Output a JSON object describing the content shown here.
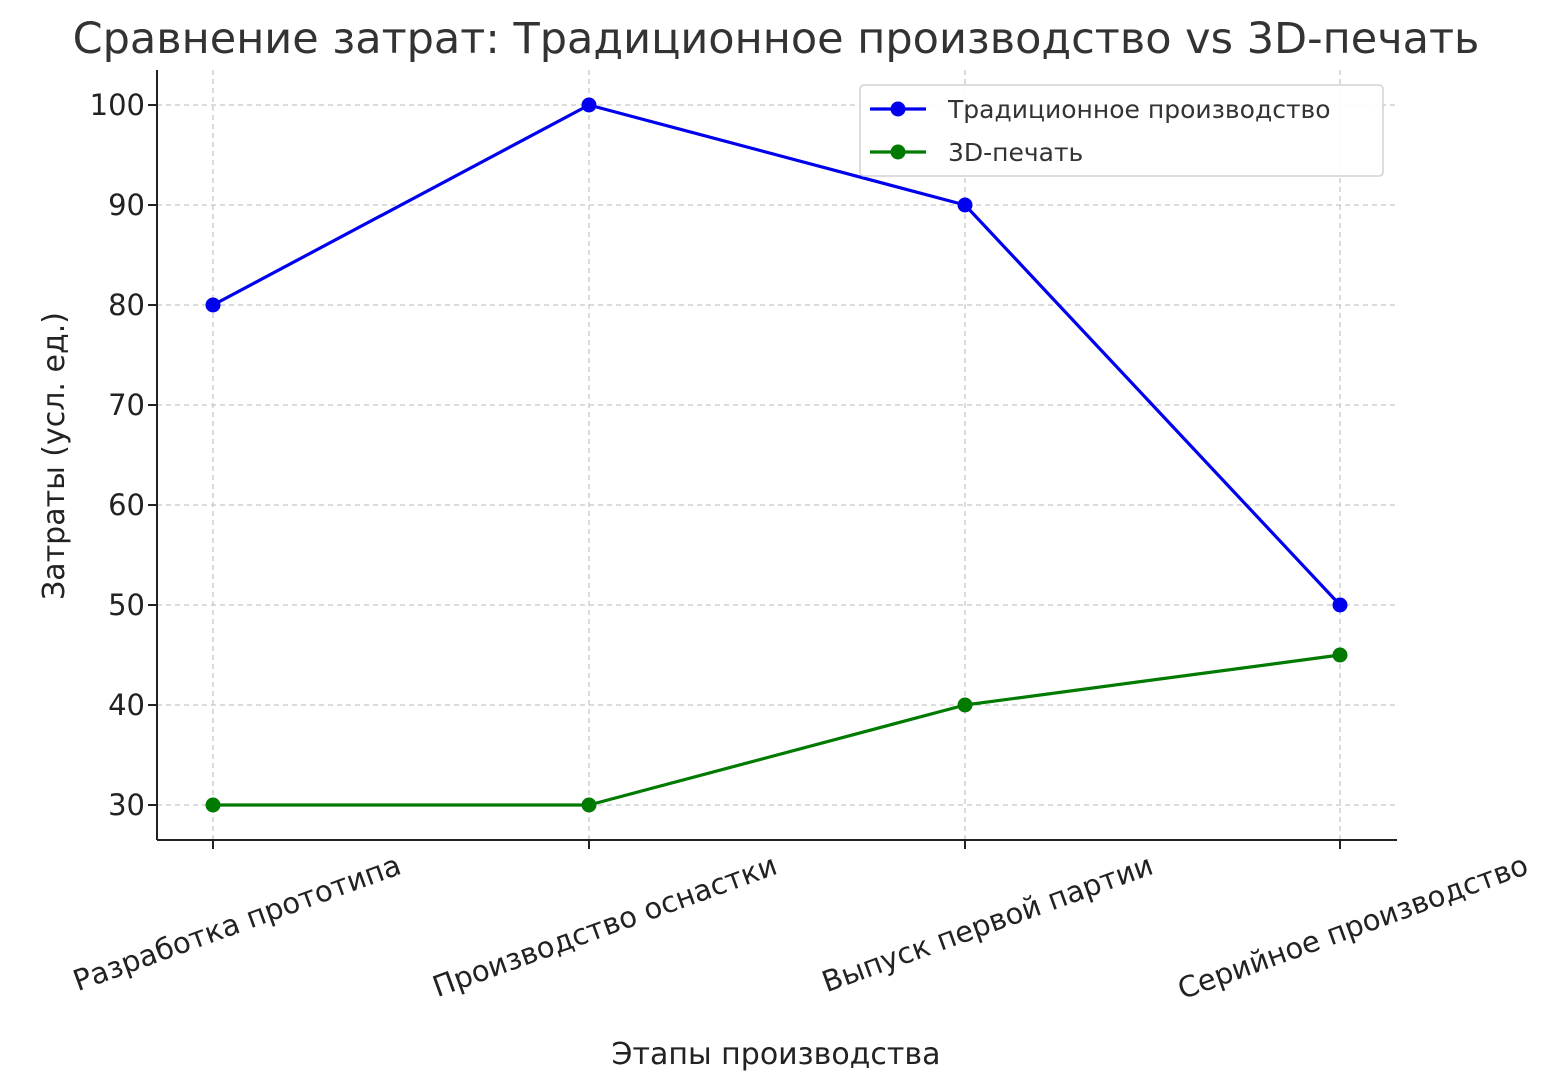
{
  "chart_data": {
    "type": "line",
    "title": "Сравнение затрат: Традиционное производство vs 3D-печать",
    "xlabel": "Этапы производства",
    "ylabel": "Затраты (усл. ед.)",
    "categories": [
      "Разработка прототипа",
      "Производство оснастки",
      "Выпуск первой партии",
      "Серийное производство"
    ],
    "series": [
      {
        "name": "Традиционное производство",
        "color": "#0000ee",
        "values": [
          80,
          100,
          90,
          50
        ]
      },
      {
        "name": "3D-печать",
        "color": "#007a00",
        "values": [
          30,
          30,
          40,
          45
        ]
      }
    ],
    "yticks": [
      30,
      40,
      50,
      60,
      70,
      80,
      90,
      100
    ],
    "ylim": [
      26.5,
      103.5
    ],
    "grid": true,
    "legend_position": "top-right",
    "marker": "circle"
  }
}
